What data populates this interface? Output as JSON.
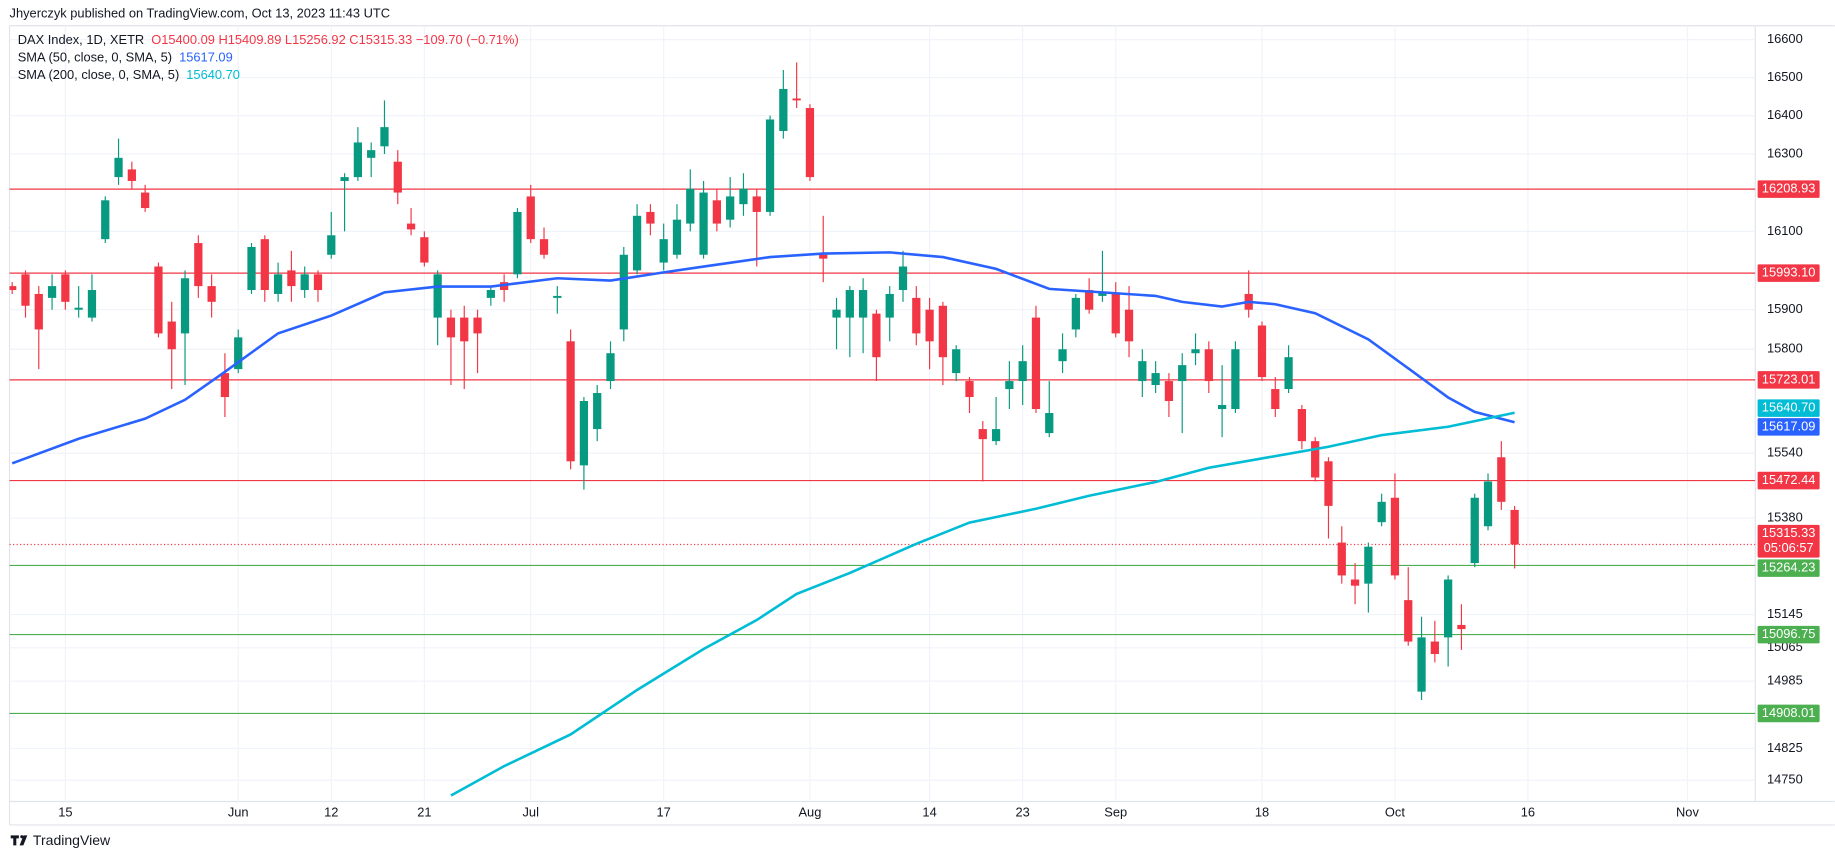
{
  "header": {
    "publisher": "Jhyerczyk published on TradingView.com, Oct 13, 2023 11:43 UTC",
    "symbol": "DAX Index, 1D, XETR",
    "ohlc": "O15400.09 H15409.89 L15256.92 C15315.33 −109.70 (−0.71%)"
  },
  "footer": {
    "brand": "TradingView"
  },
  "chart_data": {
    "type": "candlestick",
    "log_scale": true,
    "grid": true,
    "up_color": "#089981",
    "down_color": "#f23645",
    "xlim": [
      -0.2,
      131.1
    ],
    "ylim": [
      14700,
      16637
    ],
    "yticks": [
      16600,
      16500,
      16400,
      16300,
      16100,
      15900,
      15800,
      15540,
      15380,
      15145,
      15065,
      14985,
      14825,
      14750
    ],
    "xticks": [
      {
        "value": 4,
        "label": "15"
      },
      {
        "value": 17,
        "label": "Jun"
      },
      {
        "value": 24,
        "label": "12"
      },
      {
        "value": 31,
        "label": "21"
      },
      {
        "value": 39,
        "label": "Jul"
      },
      {
        "value": 49,
        "label": "17"
      },
      {
        "value": 60,
        "label": "Aug"
      },
      {
        "value": 69,
        "label": "14"
      },
      {
        "value": 76,
        "label": "23"
      },
      {
        "value": 83,
        "label": "Sep"
      },
      {
        "value": 94,
        "label": "18"
      },
      {
        "value": 104,
        "label": "Oct"
      },
      {
        "value": 114,
        "label": "16"
      },
      {
        "value": 126,
        "label": "Nov"
      }
    ],
    "candles": [
      {
        "open": 15960,
        "high": 15970,
        "low": 15940,
        "close": 15950
      },
      {
        "open": 15990,
        "high": 16000,
        "low": 15880,
        "close": 15910
      },
      {
        "open": 15940,
        "high": 15960,
        "low": 15750,
        "close": 15850
      },
      {
        "open": 15930,
        "high": 15990,
        "low": 15900,
        "close": 15960
      },
      {
        "open": 15990,
        "high": 16000,
        "low": 15900,
        "close": 15920
      },
      {
        "open": 15900,
        "high": 15960,
        "low": 15880,
        "close": 15905
      },
      {
        "open": 15880,
        "high": 15990,
        "low": 15870,
        "close": 15950
      },
      {
        "open": 16080,
        "high": 16190,
        "low": 16070,
        "close": 16180
      },
      {
        "open": 16240,
        "high": 16340,
        "low": 16220,
        "close": 16290
      },
      {
        "open": 16260,
        "high": 16280,
        "low": 16210,
        "close": 16230
      },
      {
        "open": 16200,
        "high": 16220,
        "low": 16150,
        "close": 16160
      },
      {
        "open": 16010,
        "high": 16020,
        "low": 15830,
        "close": 15840
      },
      {
        "open": 15870,
        "high": 15920,
        "low": 15700,
        "close": 15800
      },
      {
        "open": 15840,
        "high": 16000,
        "low": 15710,
        "close": 15980
      },
      {
        "open": 16070,
        "high": 16090,
        "low": 15930,
        "close": 15960
      },
      {
        "open": 15960,
        "high": 15990,
        "low": 15880,
        "close": 15920
      },
      {
        "open": 15740,
        "high": 15790,
        "low": 15630,
        "close": 15680
      },
      {
        "open": 15750,
        "high": 15850,
        "low": 15740,
        "close": 15830
      },
      {
        "open": 15950,
        "high": 16070,
        "low": 15940,
        "close": 16060
      },
      {
        "open": 16080,
        "high": 16090,
        "low": 15920,
        "close": 15950
      },
      {
        "open": 15940,
        "high": 16020,
        "low": 15920,
        "close": 15990
      },
      {
        "open": 16000,
        "high": 16050,
        "low": 15920,
        "close": 15960
      },
      {
        "open": 15950,
        "high": 16010,
        "low": 15930,
        "close": 15990
      },
      {
        "open": 15990,
        "high": 16000,
        "low": 15920,
        "close": 15950
      },
      {
        "open": 16040,
        "high": 16150,
        "low": 16030,
        "close": 16090
      },
      {
        "open": 16230,
        "high": 16250,
        "low": 16100,
        "close": 16240
      },
      {
        "open": 16240,
        "high": 16370,
        "low": 16230,
        "close": 16330
      },
      {
        "open": 16290,
        "high": 16330,
        "low": 16240,
        "close": 16310
      },
      {
        "open": 16320,
        "high": 16440,
        "low": 16300,
        "close": 16370
      },
      {
        "open": 16280,
        "high": 16310,
        "low": 16170,
        "close": 16200
      },
      {
        "open": 16120,
        "high": 16160,
        "low": 16090,
        "close": 16105
      },
      {
        "open": 16085,
        "high": 16100,
        "low": 16010,
        "close": 16020
      },
      {
        "open": 15880,
        "high": 16000,
        "low": 15810,
        "close": 15990
      },
      {
        "open": 15880,
        "high": 15900,
        "low": 15710,
        "close": 15830
      },
      {
        "open": 15880,
        "high": 15910,
        "low": 15700,
        "close": 15820
      },
      {
        "open": 15880,
        "high": 15900,
        "low": 15740,
        "close": 15840
      },
      {
        "open": 15930,
        "high": 15960,
        "low": 15910,
        "close": 15950
      },
      {
        "open": 15970,
        "high": 15990,
        "low": 15920,
        "close": 15950
      },
      {
        "open": 15990,
        "high": 16160,
        "low": 15980,
        "close": 16150
      },
      {
        "open": 16190,
        "high": 16220,
        "low": 16070,
        "close": 16080
      },
      {
        "open": 16080,
        "high": 16110,
        "low": 16030,
        "close": 16040
      },
      {
        "open": 15930,
        "high": 15960,
        "low": 15890,
        "close": 15935
      },
      {
        "open": 15820,
        "high": 15850,
        "low": 15500,
        "close": 15520
      },
      {
        "open": 15510,
        "high": 15680,
        "low": 15450,
        "close": 15670
      },
      {
        "open": 15600,
        "high": 15710,
        "low": 15570,
        "close": 15690
      },
      {
        "open": 15720,
        "high": 15820,
        "low": 15700,
        "close": 15790
      },
      {
        "open": 15850,
        "high": 16060,
        "low": 15820,
        "close": 16040
      },
      {
        "open": 16000,
        "high": 16170,
        "low": 15990,
        "close": 16140
      },
      {
        "open": 16150,
        "high": 16170,
        "low": 16090,
        "close": 16120
      },
      {
        "open": 16020,
        "high": 16120,
        "low": 16000,
        "close": 16080
      },
      {
        "open": 16040,
        "high": 16170,
        "low": 16030,
        "close": 16130
      },
      {
        "open": 16120,
        "high": 16260,
        "low": 16100,
        "close": 16210
      },
      {
        "open": 16040,
        "high": 16230,
        "low": 16030,
        "close": 16200
      },
      {
        "open": 16180,
        "high": 16210,
        "low": 16100,
        "close": 16120
      },
      {
        "open": 16130,
        "high": 16240,
        "low": 16110,
        "close": 16190
      },
      {
        "open": 16170,
        "high": 16250,
        "low": 16140,
        "close": 16210
      },
      {
        "open": 16190,
        "high": 16210,
        "low": 16010,
        "close": 16150
      },
      {
        "open": 16150,
        "high": 16400,
        "low": 16140,
        "close": 16390
      },
      {
        "open": 16360,
        "high": 16520,
        "low": 16340,
        "close": 16470
      },
      {
        "open": 16445,
        "high": 16540,
        "low": 16420,
        "close": 16440
      },
      {
        "open": 16420,
        "high": 16430,
        "low": 16230,
        "close": 16240
      },
      {
        "open": 16040,
        "high": 16140,
        "low": 15970,
        "close": 16030
      },
      {
        "open": 15880,
        "high": 15930,
        "low": 15800,
        "close": 15900
      },
      {
        "open": 15880,
        "high": 15960,
        "low": 15780,
        "close": 15950
      },
      {
        "open": 15880,
        "high": 15980,
        "low": 15790,
        "close": 15950
      },
      {
        "open": 15890,
        "high": 15900,
        "low": 15720,
        "close": 15780
      },
      {
        "open": 15880,
        "high": 15960,
        "low": 15820,
        "close": 15940
      },
      {
        "open": 15950,
        "high": 16050,
        "low": 15920,
        "close": 16010
      },
      {
        "open": 15930,
        "high": 15960,
        "low": 15810,
        "close": 15840
      },
      {
        "open": 15900,
        "high": 15930,
        "low": 15750,
        "close": 15820
      },
      {
        "open": 15910,
        "high": 15920,
        "low": 15710,
        "close": 15780
      },
      {
        "open": 15740,
        "high": 15810,
        "low": 15720,
        "close": 15800
      },
      {
        "open": 15720,
        "high": 15730,
        "low": 15640,
        "close": 15680
      },
      {
        "open": 15600,
        "high": 15620,
        "low": 15470,
        "close": 15575
      },
      {
        "open": 15570,
        "high": 15680,
        "low": 15560,
        "close": 15600
      },
      {
        "open": 15700,
        "high": 15770,
        "low": 15650,
        "close": 15720
      },
      {
        "open": 15720,
        "high": 15810,
        "low": 15660,
        "close": 15770
      },
      {
        "open": 15880,
        "high": 15910,
        "low": 15640,
        "close": 15650
      },
      {
        "open": 15590,
        "high": 15720,
        "low": 15580,
        "close": 15640
      },
      {
        "open": 15770,
        "high": 15840,
        "low": 15740,
        "close": 15800
      },
      {
        "open": 15850,
        "high": 15940,
        "low": 15830,
        "close": 15930
      },
      {
        "open": 15950,
        "high": 15980,
        "low": 15890,
        "close": 15900
      },
      {
        "open": 15935,
        "high": 16050,
        "low": 15920,
        "close": 15945
      },
      {
        "open": 15940,
        "high": 15970,
        "low": 15830,
        "close": 15840
      },
      {
        "open": 15900,
        "high": 15960,
        "low": 15780,
        "close": 15820
      },
      {
        "open": 15720,
        "high": 15800,
        "low": 15680,
        "close": 15770
      },
      {
        "open": 15710,
        "high": 15770,
        "low": 15690,
        "close": 15740
      },
      {
        "open": 15720,
        "high": 15740,
        "low": 15630,
        "close": 15670
      },
      {
        "open": 15720,
        "high": 15790,
        "low": 15590,
        "close": 15760
      },
      {
        "open": 15790,
        "high": 15840,
        "low": 15760,
        "close": 15800
      },
      {
        "open": 15800,
        "high": 15820,
        "low": 15690,
        "close": 15720
      },
      {
        "open": 15650,
        "high": 15760,
        "low": 15580,
        "close": 15660
      },
      {
        "open": 15650,
        "high": 15820,
        "low": 15640,
        "close": 15800
      },
      {
        "open": 15940,
        "high": 16000,
        "low": 15880,
        "close": 15900
      },
      {
        "open": 15860,
        "high": 15870,
        "low": 15720,
        "close": 15730
      },
      {
        "open": 15700,
        "high": 15730,
        "low": 15630,
        "close": 15650
      },
      {
        "open": 15700,
        "high": 15810,
        "low": 15690,
        "close": 15780
      },
      {
        "open": 15650,
        "high": 15660,
        "low": 15550,
        "close": 15570
      },
      {
        "open": 15570,
        "high": 15580,
        "low": 15470,
        "close": 15480
      },
      {
        "open": 15520,
        "high": 15530,
        "low": 15330,
        "close": 15410
      },
      {
        "open": 15320,
        "high": 15360,
        "low": 15220,
        "close": 15240
      },
      {
        "open": 15230,
        "high": 15270,
        "low": 15170,
        "close": 15215
      },
      {
        "open": 15220,
        "high": 15320,
        "low": 15150,
        "close": 15310
      },
      {
        "open": 15370,
        "high": 15440,
        "low": 15360,
        "close": 15420
      },
      {
        "open": 15430,
        "high": 15490,
        "low": 15230,
        "close": 15240
      },
      {
        "open": 15180,
        "high": 15260,
        "low": 15070,
        "close": 15080
      },
      {
        "open": 14960,
        "high": 15140,
        "low": 14940,
        "close": 15090
      },
      {
        "open": 15080,
        "high": 15130,
        "low": 15030,
        "close": 15050
      },
      {
        "open": 15090,
        "high": 15240,
        "low": 15020,
        "close": 15230
      },
      {
        "open": 15120,
        "high": 15170,
        "low": 15060,
        "close": 15110
      },
      {
        "open": 15270,
        "high": 15440,
        "low": 15260,
        "close": 15430
      },
      {
        "open": 15360,
        "high": 15490,
        "low": 15350,
        "close": 15470
      },
      {
        "open": 15530,
        "high": 15570,
        "low": 15400,
        "close": 15420
      },
      {
        "open": 15400.09,
        "high": 15409.89,
        "low": 15256.92,
        "close": 15315.33
      }
    ],
    "series": [
      {
        "name": "SMA (50, close, 0, SMA, 5)",
        "color": "#2962ff",
        "last_value_label": "15617.09",
        "x": [
          0,
          5,
          10,
          13,
          16,
          20,
          24,
          28,
          32,
          36,
          41,
          45,
          49,
          52,
          57,
          61,
          66,
          70,
          74,
          78,
          82,
          86,
          88,
          91,
          93,
          95,
          98,
          102,
          105,
          108,
          110,
          113
        ],
        "values": [
          15515,
          15576,
          15626,
          15673,
          15743,
          15840,
          15885,
          15944,
          15959,
          15959,
          15980,
          15974,
          15995,
          16010,
          16034,
          16043,
          16046,
          16034,
          16004,
          15953,
          15944,
          15935,
          15920,
          15908,
          15920,
          15914,
          15891,
          15825,
          15752,
          15679,
          15643,
          15617.09
        ]
      },
      {
        "name": "SMA (200, close, 0, SMA, 5)",
        "color": "#00bcd4",
        "last_value_label": "15640.70",
        "x": [
          33,
          37,
          42,
          47,
          52,
          56,
          59,
          63,
          68,
          72,
          77,
          81,
          86,
          90,
          94,
          99,
          103,
          108,
          113
        ],
        "values": [
          14714,
          14783,
          14858,
          14964,
          15062,
          15132,
          15195,
          15246,
          15317,
          15369,
          15403,
          15435,
          15469,
          15504,
          15527,
          15556,
          15585,
          15606,
          15640.7
        ]
      }
    ],
    "levels": [
      {
        "value": 16208.93,
        "label": "16208.93",
        "color": "#f23645"
      },
      {
        "value": 15993.1,
        "label": "15993.10",
        "color": "#f23645"
      },
      {
        "value": 15723.01,
        "label": "15723.01",
        "color": "#f23645"
      },
      {
        "value": 15472.44,
        "label": "15472.44",
        "color": "#f23645"
      },
      {
        "value": 15264.23,
        "label": "15264.23",
        "color": "#4caf50"
      },
      {
        "value": 15096.75,
        "label": "15096.75",
        "color": "#4caf50"
      },
      {
        "value": 14908.01,
        "label": "14908.01",
        "color": "#4caf50"
      }
    ],
    "last_price": {
      "value": 15315.33,
      "label": "15315.33",
      "countdown": "05:06:57",
      "color": "#f23645"
    }
  }
}
